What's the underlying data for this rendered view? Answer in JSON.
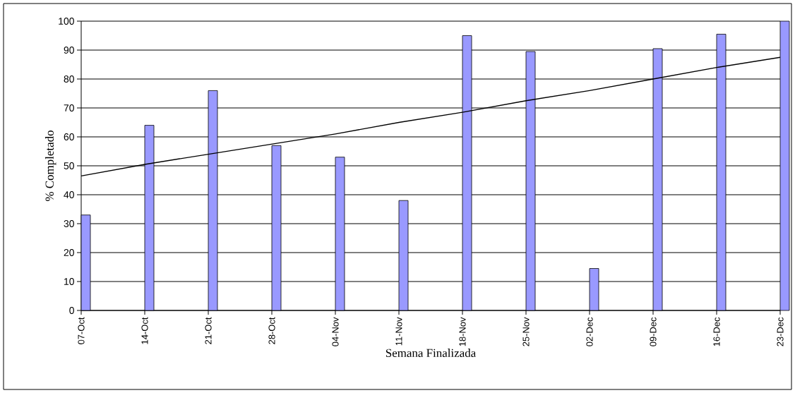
{
  "chart_data": {
    "type": "bar",
    "xlabel": "Semana Finalizada",
    "ylabel": "% Completado",
    "categories": [
      "07-Oct",
      "14-Oct",
      "21-Oct",
      "28-Oct",
      "04-Nov",
      "11-Nov",
      "18-Nov",
      "25-Nov",
      "02-Dec",
      "09-Dec",
      "16-Dec",
      "23-Dec"
    ],
    "series": [
      {
        "color": "#9999ff",
        "values": [
          33,
          64,
          76,
          57,
          53,
          38,
          95,
          89.5,
          14.5,
          90.5,
          95.5,
          100
        ]
      },
      {
        "type": "line",
        "color": "#000000",
        "values": [
          46.5,
          50.5,
          54,
          57.5,
          61,
          65,
          68.5,
          72.5,
          76,
          80,
          84,
          87.5
        ]
      }
    ],
    "ylim": [
      0,
      100
    ],
    "yticks": [
      0,
      10,
      20,
      30,
      40,
      50,
      60,
      70,
      80,
      90,
      100
    ],
    "grid": "y"
  }
}
